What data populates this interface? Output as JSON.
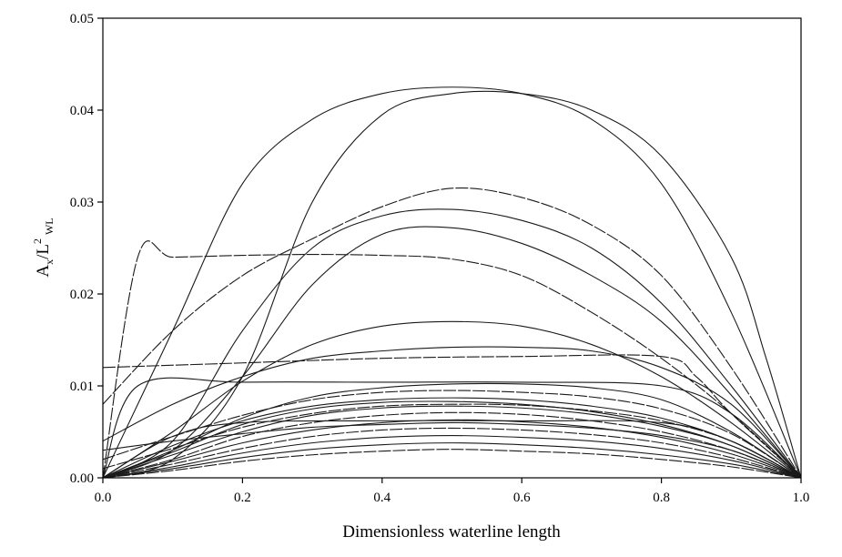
{
  "chart_data": {
    "type": "line",
    "title": "",
    "xlabel": "Dimensionless waterline length",
    "ylabel_main": "A",
    "ylabel_sub": "x",
    "ylabel_mid": "/L",
    "ylabel_sup": "2",
    "ylabel_sub2": "WL",
    "xlim": [
      0.0,
      1.0
    ],
    "ylim": [
      0.0,
      0.05
    ],
    "x_ticks": [
      "0.0",
      "0.2",
      "0.4",
      "0.6",
      "0.8",
      "1.0"
    ],
    "y_ticks": [
      "0.00",
      "0.01",
      "0.02",
      "0.03",
      "0.04",
      "0.05"
    ],
    "grid": false,
    "legend": "none",
    "series": [
      {
        "x": [
          0,
          0.1,
          0.2,
          0.3,
          0.4,
          0.5,
          0.6,
          0.7,
          0.8,
          0.9,
          1.0
        ],
        "y": [
          0,
          0.016,
          0.032,
          0.039,
          0.0418,
          0.0425,
          0.0418,
          0.039,
          0.032,
          0.018,
          0
        ]
      },
      {
        "x": [
          0,
          0.1,
          0.2,
          0.3,
          0.4,
          0.5,
          0.6,
          0.7,
          0.8,
          0.9,
          0.95,
          1.0
        ],
        "y": [
          0,
          0.002,
          0.011,
          0.03,
          0.0395,
          0.0418,
          0.0418,
          0.04,
          0.035,
          0.024,
          0.013,
          0
        ]
      },
      {
        "x": [
          0,
          0.1,
          0.2,
          0.3,
          0.4,
          0.5,
          0.6,
          0.7,
          0.8,
          0.9,
          1.0
        ],
        "y": [
          0.008,
          0.016,
          0.022,
          0.026,
          0.0295,
          0.0315,
          0.0305,
          0.0275,
          0.022,
          0.012,
          0
        ]
      },
      {
        "x": [
          0,
          0.1,
          0.2,
          0.3,
          0.4,
          0.5,
          0.6,
          0.7,
          0.8,
          0.9,
          1.0
        ],
        "y": [
          0,
          0.004,
          0.016,
          0.025,
          0.0285,
          0.0292,
          0.028,
          0.025,
          0.019,
          0.01,
          0
        ]
      },
      {
        "x": [
          0,
          0.1,
          0.2,
          0.3,
          0.4,
          0.5,
          0.6,
          0.7,
          0.8,
          0.9,
          1.0
        ],
        "y": [
          0,
          0.003,
          0.011,
          0.021,
          0.0265,
          0.0272,
          0.0255,
          0.022,
          0.017,
          0.009,
          0
        ]
      },
      {
        "x": [
          0,
          0.05,
          0.1,
          0.2,
          0.3,
          0.4,
          0.5,
          0.6,
          0.7,
          0.8,
          0.9,
          1.0
        ],
        "y": [
          0,
          0.024,
          0.024,
          0.0242,
          0.0243,
          0.0242,
          0.0238,
          0.022,
          0.018,
          0.013,
          0.007,
          0
        ]
      },
      {
        "x": [
          0,
          0.1,
          0.2,
          0.3,
          0.4,
          0.5,
          0.6,
          0.7,
          0.8,
          0.9,
          1.0
        ],
        "y": [
          0,
          0.005,
          0.0105,
          0.0145,
          0.0165,
          0.017,
          0.0165,
          0.0145,
          0.011,
          0.006,
          0
        ]
      },
      {
        "x": [
          0,
          0.1,
          0.2,
          0.3,
          0.4,
          0.5,
          0.6,
          0.7,
          0.8,
          0.9,
          1.0
        ],
        "y": [
          0.004,
          0.008,
          0.011,
          0.013,
          0.0138,
          0.0142,
          0.0142,
          0.0138,
          0.012,
          0.008,
          0
        ]
      },
      {
        "x": [
          0,
          0.2,
          0.4,
          0.6,
          0.8,
          0.85,
          0.9,
          1.0
        ],
        "y": [
          0.012,
          0.0125,
          0.013,
          0.0132,
          0.0132,
          0.011,
          0.007,
          0
        ]
      },
      {
        "x": [
          0,
          0.05,
          0.2,
          0.4,
          0.6,
          0.8,
          0.9,
          1.0
        ],
        "y": [
          0,
          0.01,
          0.0104,
          0.0104,
          0.0104,
          0.01,
          0.007,
          0
        ]
      },
      {
        "x": [
          0,
          0.1,
          0.2,
          0.3,
          0.4,
          0.5,
          0.6,
          0.7,
          0.8,
          0.9,
          1.0
        ],
        "y": [
          0,
          0.003,
          0.0065,
          0.0088,
          0.0098,
          0.0102,
          0.0102,
          0.0098,
          0.0085,
          0.005,
          0
        ]
      },
      {
        "x": [
          0,
          0.1,
          0.2,
          0.3,
          0.4,
          0.5,
          0.6,
          0.7,
          0.8,
          0.9,
          1.0
        ],
        "y": [
          0.002,
          0.0045,
          0.0068,
          0.0085,
          0.0093,
          0.0095,
          0.0093,
          0.0088,
          0.0075,
          0.0048,
          0
        ]
      },
      {
        "x": [
          0,
          0.1,
          0.2,
          0.3,
          0.4,
          0.5,
          0.6,
          0.7,
          0.8,
          0.9,
          1.0
        ],
        "y": [
          0,
          0.0035,
          0.0062,
          0.0078,
          0.0085,
          0.0087,
          0.0085,
          0.0078,
          0.0065,
          0.004,
          0
        ]
      },
      {
        "x": [
          0,
          0.1,
          0.2,
          0.3,
          0.4,
          0.5,
          0.6,
          0.7,
          0.8,
          0.9,
          1.0
        ],
        "y": [
          0,
          0.0025,
          0.005,
          0.0068,
          0.0076,
          0.0078,
          0.0076,
          0.0069,
          0.0056,
          0.0035,
          0
        ]
      },
      {
        "x": [
          0,
          0.1,
          0.2,
          0.3,
          0.4,
          0.5,
          0.6,
          0.7,
          0.8,
          0.9,
          1.0
        ],
        "y": [
          0,
          0.002,
          0.0045,
          0.006,
          0.0068,
          0.0071,
          0.0069,
          0.0062,
          0.005,
          0.003,
          0
        ]
      },
      {
        "x": [
          0,
          0.1,
          0.2,
          0.4,
          0.6,
          0.8,
          0.9,
          1.0
        ],
        "y": [
          0,
          0.0045,
          0.006,
          0.0062,
          0.0062,
          0.006,
          0.004,
          0
        ]
      },
      {
        "x": [
          0,
          0.1,
          0.2,
          0.3,
          0.4,
          0.5,
          0.6,
          0.7,
          0.8,
          0.9,
          1.0
        ],
        "y": [
          0,
          0.0018,
          0.0038,
          0.0052,
          0.006,
          0.0063,
          0.0061,
          0.0055,
          0.0044,
          0.0026,
          0
        ]
      },
      {
        "x": [
          0,
          0.1,
          0.2,
          0.3,
          0.4,
          0.5,
          0.6,
          0.7,
          0.8,
          0.9,
          1.0
        ],
        "y": [
          0,
          0.0015,
          0.0032,
          0.0045,
          0.0052,
          0.0054,
          0.0052,
          0.0047,
          0.0038,
          0.0022,
          0
        ]
      },
      {
        "x": [
          0,
          0.1,
          0.2,
          0.3,
          0.4,
          0.5,
          0.6,
          0.7,
          0.8,
          0.9,
          1.0
        ],
        "y": [
          0,
          0.0012,
          0.0027,
          0.0038,
          0.0044,
          0.0046,
          0.0044,
          0.004,
          0.0032,
          0.0019,
          0
        ]
      },
      {
        "x": [
          0,
          0.1,
          0.2,
          0.3,
          0.4,
          0.5,
          0.6,
          0.7,
          0.8,
          0.9,
          1.0
        ],
        "y": [
          0,
          0.001,
          0.0022,
          0.0031,
          0.0036,
          0.0038,
          0.0036,
          0.0032,
          0.0025,
          0.0015,
          0
        ]
      },
      {
        "x": [
          0,
          0.1,
          0.2,
          0.3,
          0.4,
          0.5,
          0.6,
          0.7,
          0.8,
          0.9,
          1.0
        ],
        "y": [
          0,
          0.0008,
          0.0018,
          0.0025,
          0.0029,
          0.0031,
          0.0029,
          0.0026,
          0.002,
          0.0012,
          0
        ]
      },
      {
        "x": [
          0,
          0.1,
          0.2,
          0.3,
          0.4,
          0.5,
          0.6,
          0.7,
          0.8,
          0.9,
          1.0
        ],
        "y": [
          0.003,
          0.004,
          0.0048,
          0.0055,
          0.0058,
          0.006,
          0.0058,
          0.0054,
          0.0046,
          0.003,
          0
        ]
      },
      {
        "x": [
          0,
          0.1,
          0.2,
          0.3,
          0.4,
          0.5,
          0.6,
          0.7,
          0.8,
          0.9,
          1.0
        ],
        "y": [
          0,
          0.0028,
          0.0058,
          0.0075,
          0.0082,
          0.0083,
          0.008,
          0.0072,
          0.0058,
          0.0035,
          0
        ]
      },
      {
        "x": [
          0,
          0.1,
          0.2,
          0.3,
          0.4,
          0.5,
          0.6,
          0.7,
          0.8,
          0.9,
          1.0
        ],
        "y": [
          0.001,
          0.0032,
          0.0055,
          0.007,
          0.0078,
          0.008,
          0.0079,
          0.0073,
          0.0062,
          0.004,
          0
        ]
      }
    ]
  }
}
